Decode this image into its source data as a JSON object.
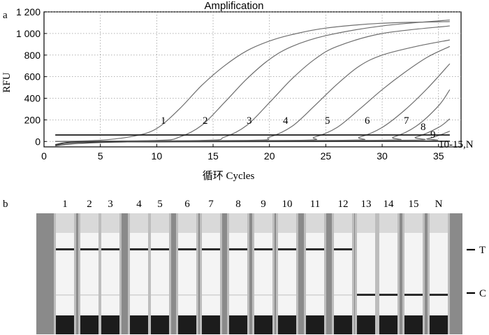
{
  "panel_a": {
    "label": "a"
  },
  "panel_b": {
    "label": "b"
  },
  "chart_data": {
    "type": "line",
    "title": "Amplification",
    "xlabel": "循环 Cycles",
    "ylabel": "RFU",
    "xlim": [
      0,
      37
    ],
    "ylim": [
      -50,
      1200
    ],
    "xticks": [
      "0",
      "5",
      "10",
      "15",
      "20",
      "25",
      "30",
      "35"
    ],
    "yticks": [
      "0",
      "200",
      "400",
      "600",
      "800",
      "1 000",
      "1 200"
    ],
    "grid": true,
    "threshold": 60,
    "x_range": [
      1,
      36
    ],
    "series": [
      {
        "name": "1",
        "values": [
          [
            1,
            0
          ],
          [
            5,
            12
          ],
          [
            8,
            50
          ],
          [
            10,
            120
          ],
          [
            12,
            300
          ],
          [
            14,
            520
          ],
          [
            16,
            700
          ],
          [
            18,
            840
          ],
          [
            20,
            930
          ],
          [
            22,
            990
          ],
          [
            25,
            1050
          ],
          [
            30,
            1095
          ],
          [
            36,
            1110
          ]
        ]
      },
      {
        "name": "2",
        "values": [
          [
            1,
            0
          ],
          [
            10,
            10
          ],
          [
            12,
            40
          ],
          [
            14,
            150
          ],
          [
            16,
            360
          ],
          [
            18,
            580
          ],
          [
            20,
            760
          ],
          [
            22,
            880
          ],
          [
            25,
            980
          ],
          [
            30,
            1070
          ],
          [
            36,
            1125
          ]
        ]
      },
      {
        "name": "3",
        "values": [
          [
            1,
            0
          ],
          [
            14,
            10
          ],
          [
            16,
            40
          ],
          [
            18,
            150
          ],
          [
            20,
            360
          ],
          [
            22,
            580
          ],
          [
            24,
            760
          ],
          [
            26,
            880
          ],
          [
            30,
            1000
          ],
          [
            36,
            1070
          ]
        ]
      },
      {
        "name": "4",
        "values": [
          [
            1,
            0
          ],
          [
            18,
            10
          ],
          [
            20,
            40
          ],
          [
            22,
            140
          ],
          [
            24,
            330
          ],
          [
            26,
            530
          ],
          [
            28,
            700
          ],
          [
            30,
            800
          ],
          [
            33,
            880
          ],
          [
            36,
            940
          ]
        ]
      },
      {
        "name": "5",
        "values": [
          [
            1,
            0
          ],
          [
            22,
            10
          ],
          [
            24,
            40
          ],
          [
            26,
            130
          ],
          [
            28,
            300
          ],
          [
            30,
            480
          ],
          [
            32,
            640
          ],
          [
            34,
            780
          ],
          [
            36,
            880
          ]
        ]
      },
      {
        "name": "6",
        "values": [
          [
            1,
            0
          ],
          [
            26,
            10
          ],
          [
            28,
            40
          ],
          [
            30,
            130
          ],
          [
            32,
            290
          ],
          [
            34,
            490
          ],
          [
            36,
            720
          ]
        ]
      },
      {
        "name": "7",
        "values": [
          [
            1,
            0
          ],
          [
            29,
            10
          ],
          [
            31,
            40
          ],
          [
            33,
            140
          ],
          [
            35,
            330
          ],
          [
            36,
            480
          ]
        ]
      },
      {
        "name": "8",
        "values": [
          [
            1,
            0
          ],
          [
            31,
            10
          ],
          [
            33,
            40
          ],
          [
            35,
            130
          ],
          [
            36,
            210
          ]
        ]
      },
      {
        "name": "9",
        "values": [
          [
            1,
            0
          ],
          [
            32,
            5
          ],
          [
            34,
            25
          ],
          [
            35,
            55
          ],
          [
            36,
            95
          ]
        ]
      },
      {
        "name": "10-15,N",
        "values": [
          [
            1,
            -30
          ],
          [
            3,
            -5
          ],
          [
            10,
            -2
          ],
          [
            20,
            0
          ],
          [
            36,
            2
          ]
        ]
      }
    ]
  },
  "strips": {
    "lanes": [
      "1",
      "2",
      "3",
      "4",
      "5",
      "6",
      "7",
      "8",
      "9",
      "10",
      "11",
      "12",
      "13",
      "14",
      "15",
      "N"
    ],
    "t_line_present": [
      true,
      true,
      true,
      true,
      true,
      true,
      true,
      true,
      true,
      true,
      true,
      true,
      false,
      false,
      false,
      false
    ],
    "c_line_present": [
      false,
      false,
      false,
      false,
      false,
      false,
      false,
      false,
      false,
      false,
      false,
      false,
      true,
      true,
      true,
      true
    ],
    "t_label": "T",
    "c_label": "C"
  }
}
